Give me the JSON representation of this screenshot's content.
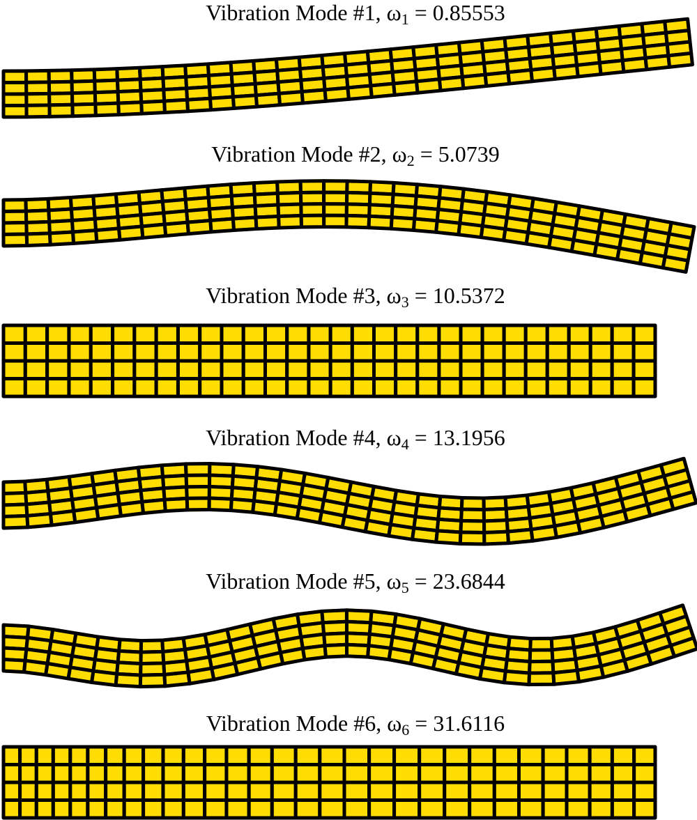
{
  "symbol": "ω",
  "relation": "=",
  "modes": [
    {
      "label": "Vibration Mode #1,",
      "subscript": "1",
      "value": 0.85553
    },
    {
      "label": "Vibration Mode #2,",
      "subscript": "2",
      "value": 5.0739
    },
    {
      "label": "Vibration Mode #3,",
      "subscript": "3",
      "value": 10.5372
    },
    {
      "label": "Vibration Mode #4,",
      "subscript": "4",
      "value": 13.1956
    },
    {
      "label": "Vibration Mode #5,",
      "subscript": "5",
      "value": 23.6844
    },
    {
      "label": "Vibration Mode #6,",
      "subscript": "6",
      "value": 31.6116
    }
  ]
}
